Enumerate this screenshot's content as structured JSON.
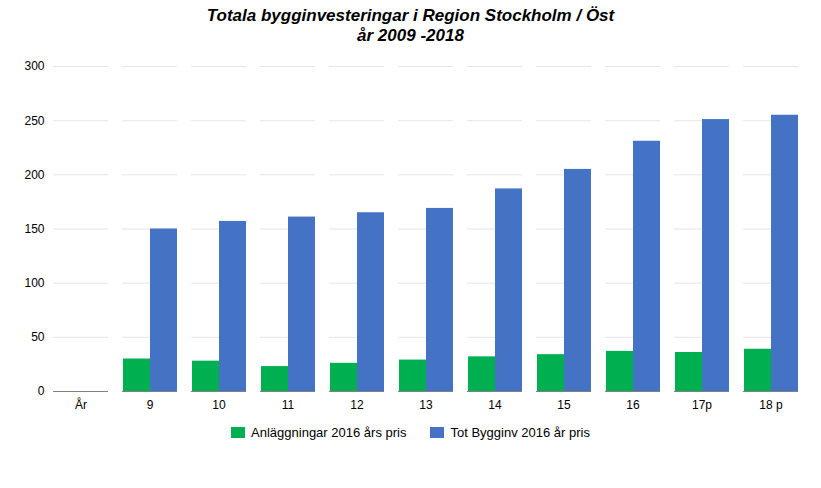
{
  "chart_data": {
    "type": "bar",
    "title": "Totala bygginvesteringar i Region Stockholm / Öst\når 2009 -2018",
    "categories": [
      "År",
      "9",
      "10",
      "11",
      "12",
      "13",
      "14",
      "15",
      "16",
      "17p",
      "18 p"
    ],
    "series": [
      {
        "name": "Anläggningar 2016 års pris",
        "color": "#00b050",
        "values": [
          0,
          30,
          28,
          23,
          26,
          29,
          32,
          34,
          37,
          36,
          39
        ]
      },
      {
        "name": "Tot Bygginv 2016 år pris",
        "color": "#4472c4",
        "values": [
          0,
          150,
          157,
          161,
          165,
          169,
          187,
          205,
          231,
          251,
          255
        ]
      }
    ],
    "ylim": [
      0,
      300
    ],
    "yticks": [
      0,
      50,
      100,
      150,
      200,
      250,
      300
    ],
    "grid": true,
    "legend": "bottom"
  }
}
